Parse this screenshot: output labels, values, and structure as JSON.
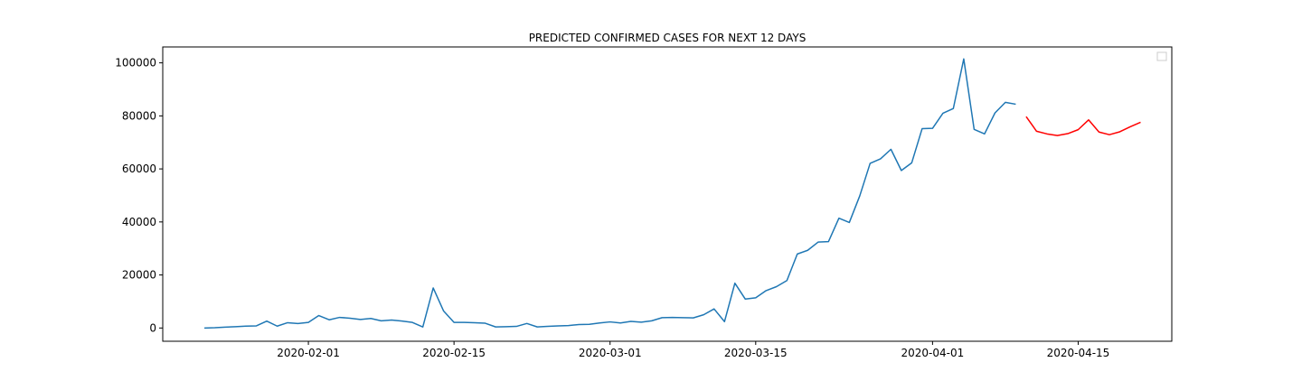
{
  "chart_data": {
    "type": "line",
    "title": "PREDICTED CONFIRMED CASES FOR NEXT 12 DAYS",
    "xlabel": "",
    "ylabel": "",
    "grid": false,
    "legend": "top-right",
    "xlim": [
      "2020-01-18",
      "2020-04-24"
    ],
    "ylim": [
      -5000,
      106000
    ],
    "x_ticks": [
      "2020-02-01",
      "2020-02-15",
      "2020-03-01",
      "2020-03-15",
      "2020-04-01",
      "2020-04-15"
    ],
    "y_ticks": [
      0,
      20000,
      40000,
      60000,
      80000,
      100000
    ],
    "series": [
      {
        "color": "#1f77b4",
        "x": [
          "2020-01-22",
          "2020-01-23",
          "2020-01-24",
          "2020-01-25",
          "2020-01-26",
          "2020-01-27",
          "2020-01-28",
          "2020-01-29",
          "2020-01-30",
          "2020-01-31",
          "2020-02-01",
          "2020-02-02",
          "2020-02-03",
          "2020-02-04",
          "2020-02-05",
          "2020-02-06",
          "2020-02-07",
          "2020-02-08",
          "2020-02-09",
          "2020-02-10",
          "2020-02-11",
          "2020-02-12",
          "2020-02-13",
          "2020-02-14",
          "2020-02-15",
          "2020-02-16",
          "2020-02-17",
          "2020-02-18",
          "2020-02-19",
          "2020-02-20",
          "2020-02-21",
          "2020-02-22",
          "2020-02-23",
          "2020-02-24",
          "2020-02-25",
          "2020-02-26",
          "2020-02-27",
          "2020-02-28",
          "2020-02-29",
          "2020-03-01",
          "2020-03-02",
          "2020-03-03",
          "2020-03-04",
          "2020-03-05",
          "2020-03-06",
          "2020-03-07",
          "2020-03-08",
          "2020-03-09",
          "2020-03-10",
          "2020-03-11",
          "2020-03-12",
          "2020-03-13",
          "2020-03-14",
          "2020-03-15",
          "2020-03-16",
          "2020-03-17",
          "2020-03-18",
          "2020-03-19",
          "2020-03-20",
          "2020-03-21",
          "2020-03-22",
          "2020-03-23",
          "2020-03-24",
          "2020-03-25",
          "2020-03-26",
          "2020-03-27",
          "2020-03-28",
          "2020-03-29",
          "2020-03-30",
          "2020-03-31",
          "2020-04-01",
          "2020-04-02",
          "2020-04-03",
          "2020-04-04",
          "2020-04-05",
          "2020-04-06",
          "2020-04-07",
          "2020-04-08",
          "2020-04-09"
        ],
        "values": [
          0,
          100,
          300,
          500,
          700,
          800,
          2600,
          700,
          2000,
          1700,
          2100,
          4700,
          3100,
          4000,
          3700,
          3200,
          3600,
          2700,
          3000,
          2600,
          2100,
          400,
          15100,
          6400,
          2100,
          2100,
          2000,
          1800,
          400,
          500,
          600,
          1700,
          400,
          600,
          800,
          900,
          1300,
          1400,
          1900,
          2300,
          1900,
          2500,
          2200,
          2700,
          3900,
          4000,
          3900,
          3800,
          5000,
          7200,
          2400,
          16900,
          10900,
          11400,
          14100,
          15600,
          17900,
          27900,
          29300,
          32400,
          32600,
          41400,
          39800,
          49800,
          62100,
          63800,
          67400,
          59400,
          62300,
          75200,
          75300,
          81000,
          82800,
          101500,
          74900,
          73200,
          81100,
          85100,
          84400
        ]
      },
      {
        "color": "#ff0000",
        "x": [
          "2020-04-10",
          "2020-04-11",
          "2020-04-12",
          "2020-04-13",
          "2020-04-14",
          "2020-04-15",
          "2020-04-16",
          "2020-04-17",
          "2020-04-18",
          "2020-04-19",
          "2020-04-20",
          "2020-04-21"
        ],
        "values": [
          79700,
          74200,
          73200,
          72600,
          73300,
          74800,
          78500,
          73900,
          72900,
          74000,
          75900,
          77600
        ]
      }
    ]
  }
}
